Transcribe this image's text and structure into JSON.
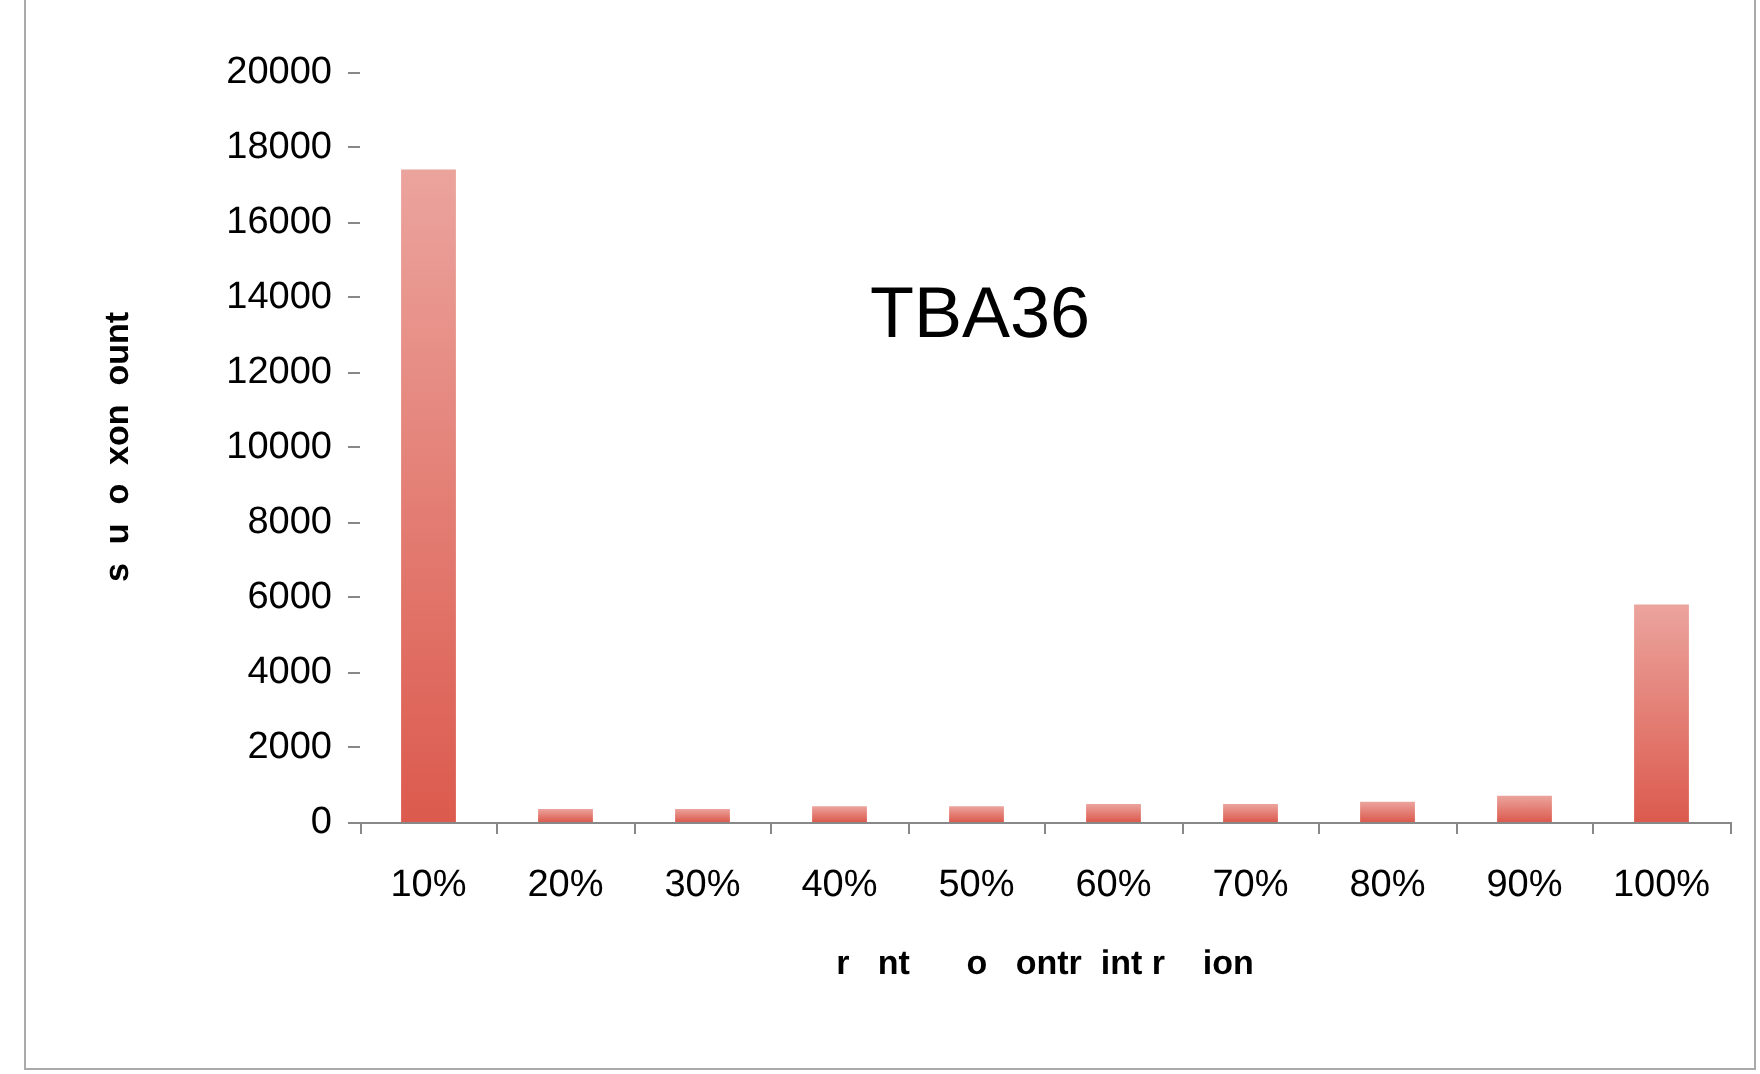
{
  "chart_data": {
    "type": "bar",
    "categories": [
      "10%",
      "20%",
      "30%",
      "40%",
      "50%",
      "60%",
      "70%",
      "80%",
      "90%",
      "100%"
    ],
    "values": [
      17400,
      350,
      350,
      420,
      420,
      480,
      480,
      540,
      700,
      5800
    ],
    "color": "#dc5a4e",
    "xlabel": "r   nt      o   ontr  int r    ion",
    "ylabel": "s  u  o  xon  ount",
    "annotations": [
      "TBA36"
    ],
    "ylim": [
      0,
      20000
    ],
    "yticks": [
      0,
      2000,
      4000,
      6000,
      8000,
      10000,
      12000,
      14000,
      16000,
      18000,
      20000
    ],
    "grid": false
  }
}
